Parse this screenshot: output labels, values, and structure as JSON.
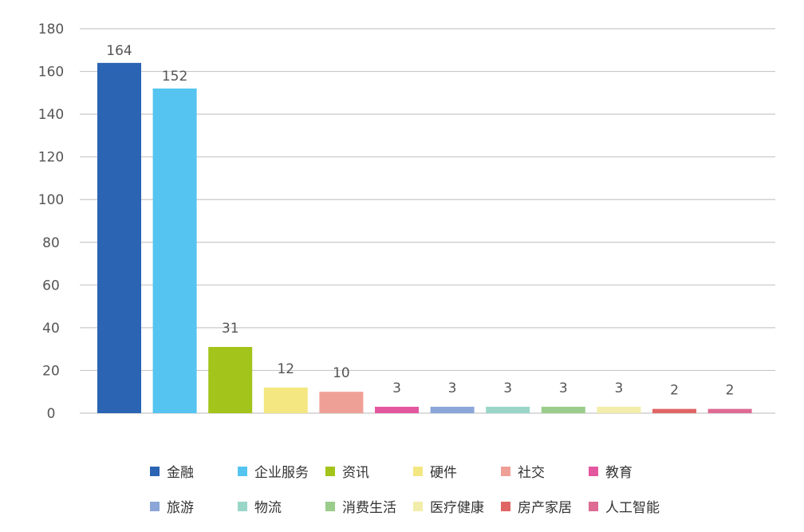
{
  "chart_data": {
    "type": "bar",
    "categories": [
      "金融",
      "企业服务",
      "资讯",
      "硬件",
      "社交",
      "教育",
      "旅游",
      "物流",
      "消费生活",
      "医疗健康",
      "房产家居",
      "人工智能"
    ],
    "values": [
      164,
      152,
      31,
      12,
      10,
      3,
      3,
      3,
      3,
      3,
      2,
      2
    ],
    "data_labels": [
      "164",
      "152",
      "31",
      "12",
      "10",
      "3",
      "3",
      "3",
      "3",
      "3",
      "2",
      "2"
    ],
    "colors": [
      "#2a64b3",
      "#55c4f0",
      "#a3c41a",
      "#f4e782",
      "#efa096",
      "#e3579e",
      "#8ba6d8",
      "#99d6c8",
      "#9acd8c",
      "#f2edaa",
      "#e06565",
      "#dd6b93"
    ],
    "yticks": [
      "0",
      "20",
      "40",
      "60",
      "80",
      "100",
      "120",
      "140",
      "160",
      "180"
    ],
    "ylim": [
      0,
      180
    ],
    "grid": true,
    "legend_position": "bottom",
    "title": "",
    "xlabel": "",
    "ylabel": ""
  }
}
